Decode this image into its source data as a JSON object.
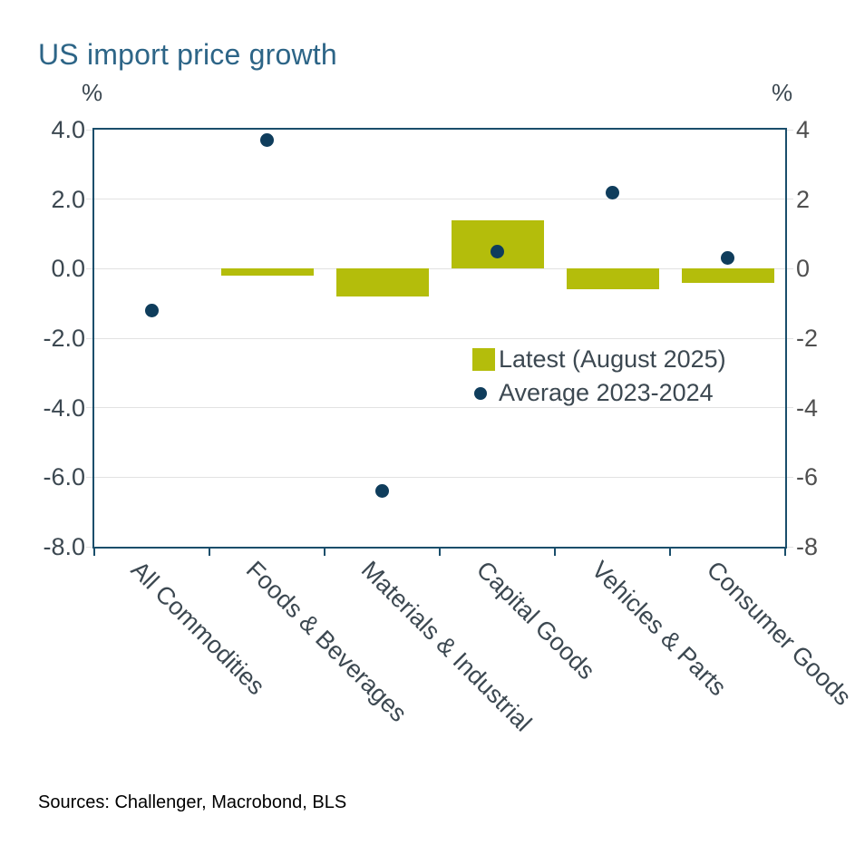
{
  "title": "US import price growth",
  "axis_unit_left": "%",
  "axis_unit_right": "%",
  "legend": {
    "bar_label": "Latest (August 2025)",
    "dot_label": "Average 2023-2024"
  },
  "sources": "Sources: Challenger, Macrobond, BLS",
  "colors": {
    "bar": "#b4bd0b",
    "dot": "#0f3d5c",
    "title": "#2d6587",
    "frame": "#1a4e6b",
    "gridline": "#e2e2e2",
    "text": "#3c4851",
    "right_axis_text": "#4f4f4f"
  },
  "chart_data": {
    "type": "bar",
    "title": "US import price growth",
    "ylabel": "%",
    "categories": [
      "All Commodities",
      "Foods & Beverages",
      "Materials & Industrial",
      "Capital Goods",
      "Vehicles & Parts",
      "Consumer Goods"
    ],
    "series": [
      {
        "name": "Latest (August 2025)",
        "mark": "bar",
        "values": [
          0.0,
          -0.2,
          -0.8,
          1.4,
          -0.6,
          -0.4
        ]
      },
      {
        "name": "Average 2023-2024",
        "mark": "scatter",
        "values": [
          -1.2,
          3.7,
          -6.4,
          0.5,
          2.2,
          0.3
        ]
      }
    ],
    "ylim": [
      -8,
      4
    ],
    "yticks": {
      "values": [
        4,
        2,
        0,
        -2,
        -4,
        -6,
        -8
      ],
      "left_labels": [
        "4.0",
        "2.0",
        "0.0",
        "-2.0",
        "-4.0",
        "-6.0",
        "-8.0"
      ],
      "right_labels": [
        "4",
        "2",
        "0",
        "-2",
        "-4",
        "-6",
        "-8"
      ]
    },
    "gridlines": [
      2,
      0,
      -2,
      -4,
      -6
    ],
    "grid": "horizontal",
    "legend_position": "inside-right"
  }
}
